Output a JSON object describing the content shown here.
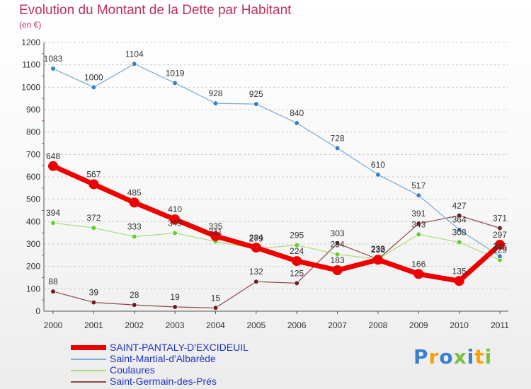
{
  "title": "Evolution du Montant de la Dette par Habitant",
  "unit_label": "(en €)",
  "logo": {
    "text": "Proxiti",
    "colors": [
      "#3a7fd0",
      "#ffa000",
      "#3a7fd0",
      "#7bc043",
      "#3a7fd0",
      "#ffa000",
      "#7bc043"
    ]
  },
  "colors": {
    "title": "#c0305a",
    "legend_text": "#1f35c8",
    "axis_text": "#333333",
    "grid": "#cccccc"
  },
  "chart_data": {
    "type": "line",
    "x": [
      "2000",
      "2001",
      "2002",
      "2003",
      "2004",
      "2005",
      "2006",
      "2007",
      "2008",
      "2009",
      "2010",
      "2011"
    ],
    "ylim": [
      0,
      1200
    ],
    "yticks": [
      0,
      100,
      200,
      300,
      400,
      500,
      600,
      700,
      800,
      900,
      1000,
      1100,
      1200
    ],
    "grid": "horizontal dashed",
    "legend_position": "bottom-left",
    "series": [
      {
        "name": "SAINT-PANTALY-D'EXCIDEUIL",
        "color": "#ee0000",
        "point_color": "#ee0000",
        "width": 7,
        "marker": 7,
        "values": [
          648,
          567,
          485,
          410,
          335,
          284,
          224,
          183,
          230,
          166,
          135,
          297
        ]
      },
      {
        "name": "Saint-Martial-d'Albarède",
        "color": "#7aa9d6",
        "point_color": "#3a7fc0",
        "width": 1.2,
        "marker": 3.3,
        "values": [
          1083,
          1000,
          1104,
          1019,
          928,
          925,
          840,
          728,
          610,
          517,
          364,
          245
        ]
      },
      {
        "name": "Coulaures",
        "color": "#a8dc7a",
        "point_color": "#66cc33",
        "width": 1.2,
        "marker": 3.3,
        "values": [
          394,
          372,
          333,
          349,
          311,
          279,
          295,
          254,
          233,
          343,
          308,
          229
        ]
      },
      {
        "name": "Saint-Germain-des-Prés",
        "color": "#8a4a4a",
        "point_color": "#6b1f1f",
        "width": 1.2,
        "marker": 3.3,
        "values": [
          88,
          39,
          28,
          19,
          15,
          132,
          125,
          303,
          232,
          391,
          427,
          371
        ]
      }
    ],
    "labels": [
      {
        "series": 2,
        "values": [
          "394",
          "372",
          "333",
          "349",
          "311",
          "279",
          "295",
          "254",
          "233",
          "343",
          "308",
          "229"
        ]
      },
      {
        "series": 1,
        "values": [
          "1083",
          "1000",
          "1104",
          "1019",
          "928",
          "925",
          "840",
          "728",
          "610",
          "517",
          "364",
          "245"
        ]
      },
      {
        "series": 3,
        "values": [
          "88",
          "39",
          "28",
          "19",
          "15",
          "132",
          "125",
          "303",
          "232",
          "391",
          "427",
          "371"
        ]
      },
      {
        "series": 0,
        "values": [
          "648",
          "567",
          "485",
          "410",
          "335",
          "284",
          "224",
          "183",
          "230",
          "166",
          "135",
          "297"
        ]
      }
    ]
  }
}
